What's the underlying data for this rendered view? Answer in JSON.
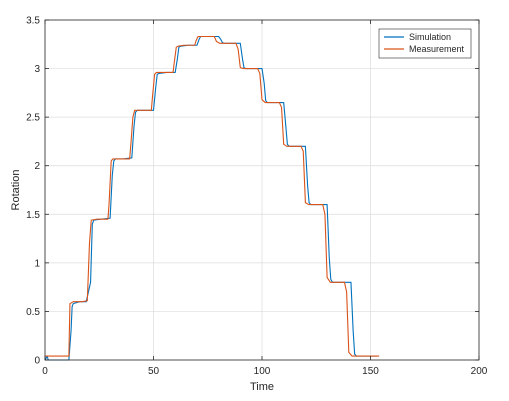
{
  "chart_data": {
    "type": "line",
    "xlabel": "Time",
    "ylabel": "Rotation",
    "xlim": [
      0,
      200
    ],
    "ylim": [
      0,
      3.5
    ],
    "xticks": [
      0,
      50,
      100,
      150,
      200
    ],
    "yticks": [
      0,
      0.5,
      1,
      1.5,
      2,
      2.5,
      3,
      3.5
    ],
    "xtick_labels": [
      "0",
      "50",
      "100",
      "150",
      "200"
    ],
    "ytick_labels": [
      "0",
      "0.5",
      "1",
      "1.5",
      "2",
      "2.5",
      "3",
      "3.5"
    ],
    "grid": true,
    "legend_position": "top-right",
    "series": [
      {
        "name": "Simulation",
        "color": "#0072bd",
        "x": [
          0,
          1,
          1.5,
          11,
          12,
          12.5,
          13,
          16,
          19,
          21,
          21.8,
          22.5,
          26,
          30,
          31,
          31.7,
          32.5,
          36,
          40,
          41,
          41.7,
          42.5,
          46,
          50,
          51,
          51.7,
          52.5,
          56,
          60,
          61,
          61.7,
          62.5,
          66,
          70,
          71,
          71.7,
          72.5,
          76,
          80,
          81,
          81.7,
          82.5,
          86,
          90,
          91,
          91.7,
          92.5,
          96,
          100,
          101,
          101.7,
          102.5,
          106,
          110,
          111,
          111.7,
          112.5,
          116,
          120,
          121,
          121.7,
          122.5,
          126,
          130,
          131,
          131.7,
          132.5,
          136,
          141,
          142,
          142.7,
          143.5,
          146,
          153
        ],
        "y": [
          0.0,
          0.04,
          0.0,
          0.0,
          0.3,
          0.55,
          0.58,
          0.6,
          0.6,
          0.8,
          1.4,
          1.44,
          1.45,
          1.46,
          1.9,
          2.05,
          2.07,
          2.07,
          2.08,
          2.4,
          2.55,
          2.57,
          2.57,
          2.57,
          2.8,
          2.94,
          2.95,
          2.96,
          2.96,
          3.1,
          3.22,
          3.23,
          3.24,
          3.24,
          3.3,
          3.33,
          3.33,
          3.33,
          3.33,
          3.3,
          3.27,
          3.26,
          3.26,
          3.26,
          3.1,
          3.01,
          3.0,
          3.0,
          3.0,
          2.85,
          2.67,
          2.65,
          2.65,
          2.65,
          2.4,
          2.22,
          2.2,
          2.2,
          2.2,
          1.8,
          1.62,
          1.6,
          1.6,
          1.6,
          1.05,
          0.83,
          0.8,
          0.8,
          0.8,
          0.3,
          0.06,
          0.04,
          0.04,
          0.04
        ]
      },
      {
        "name": "Measurement",
        "color": "#d95319",
        "x": [
          0,
          10,
          11,
          11.5,
          13,
          17,
          19.5,
          20.5,
          21.3,
          24,
          29,
          29.5,
          30.5,
          31.3,
          34,
          39,
          39.5,
          40.5,
          41.3,
          44,
          49,
          49.5,
          50.5,
          51.3,
          54,
          59,
          59.5,
          60.5,
          61.3,
          64,
          69,
          69.5,
          70.5,
          71.3,
          74,
          78,
          79,
          80.5,
          82,
          88,
          89,
          90,
          91.5,
          98,
          99,
          100,
          101.5,
          108,
          109,
          110,
          111.5,
          118,
          119,
          120,
          121.5,
          128,
          129,
          130,
          131.5,
          138,
          139,
          140,
          141.5,
          145,
          154
        ],
        "y": [
          0.04,
          0.04,
          0.04,
          0.58,
          0.6,
          0.6,
          0.61,
          1.2,
          1.44,
          1.45,
          1.45,
          1.6,
          2.05,
          2.07,
          2.07,
          2.07,
          2.2,
          2.5,
          2.57,
          2.57,
          2.57,
          2.7,
          2.94,
          2.96,
          2.96,
          2.96,
          3.05,
          3.22,
          3.23,
          3.24,
          3.24,
          3.28,
          3.33,
          3.33,
          3.33,
          3.33,
          3.28,
          3.26,
          3.26,
          3.26,
          3.2,
          3.01,
          3.0,
          3.0,
          2.95,
          2.68,
          2.65,
          2.65,
          2.6,
          2.22,
          2.2,
          2.2,
          2.15,
          1.62,
          1.6,
          1.6,
          1.5,
          0.85,
          0.8,
          0.8,
          0.7,
          0.08,
          0.04,
          0.04,
          0.04
        ]
      }
    ]
  }
}
